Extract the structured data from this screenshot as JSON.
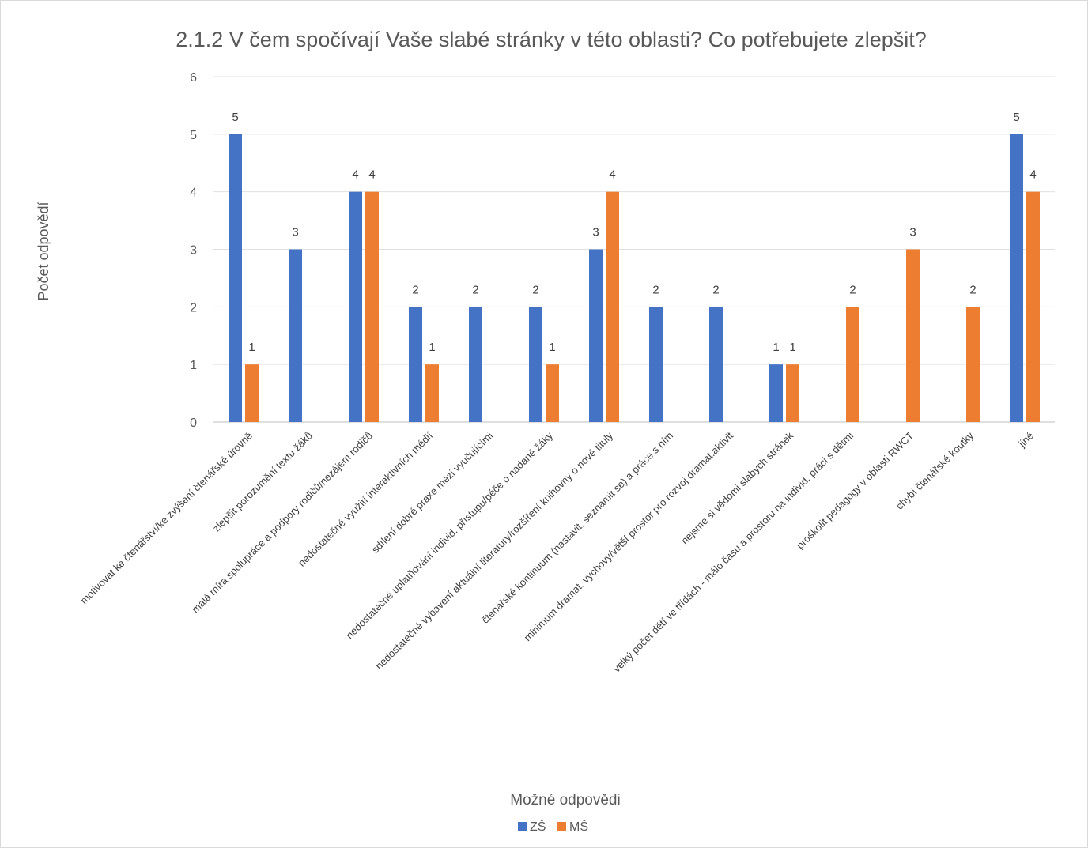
{
  "chart_data": {
    "type": "bar",
    "title": "2.1.2 V čem spočívají Vaše slabé stránky v této oblasti? Co potřebujete zlepšit?",
    "xlabel": "Možné odpovědi",
    "ylabel": "Počet odpovědí",
    "ylim": [
      0,
      6
    ],
    "yticks": [
      0,
      1,
      2,
      3,
      4,
      5,
      6
    ],
    "grid": true,
    "legend_position": "bottom",
    "categories": [
      "motivovat ke čtenářství/ke zvýšení čtenářské úrovně",
      "zlepšit porozumění textu žáků",
      "malá míra spolupráce a podpory rodičů/nezájem rodičů",
      "nedostatečné využití interaktivních médií",
      "sdílení dobré praxe mezi vyučujícími",
      "nedostatečné uplatňování individ. přístupu/péče o nadané žáky",
      "nedostatečné vybavení aktuální literatury/rozšíření knihovny o nové tituly",
      "čtenářské kontinuum (nastavit, seznámit se) a práce s ním",
      "minimum dramat. výchovy/větší prostor pro rozvoj dramat.aktivit",
      "nejsme si vědomi slabých stránek",
      "velký počet dětí ve třídách - málo času a prostoru na individ. práci s dětmi",
      "proškolit pedagogy v oblasti RWCT",
      "chybí čtenářské koutky",
      "jiné"
    ],
    "series": [
      {
        "name": "ZŠ",
        "color": "#4472C4",
        "values": [
          5,
          3,
          4,
          2,
          2,
          2,
          3,
          2,
          2,
          1,
          null,
          null,
          null,
          5
        ]
      },
      {
        "name": "MŠ",
        "color": "#ED7D31",
        "values": [
          1,
          null,
          4,
          1,
          null,
          1,
          4,
          null,
          null,
          1,
          2,
          3,
          2,
          4
        ]
      }
    ]
  }
}
